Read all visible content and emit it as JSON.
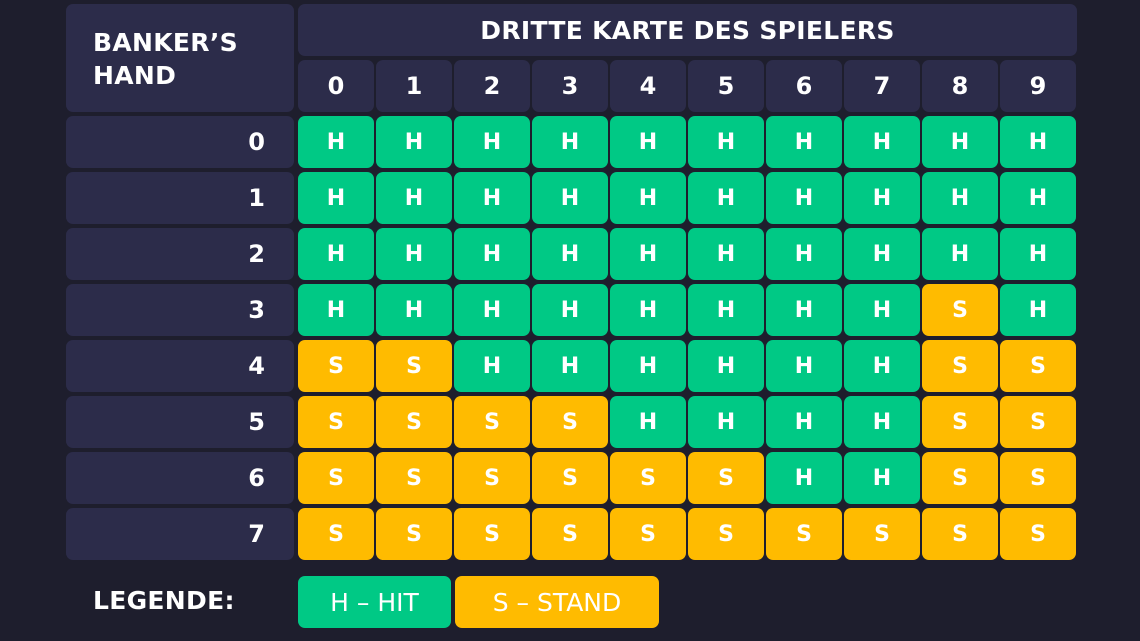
{
  "header": {
    "corner_label": "BANKER’S HAND",
    "title": "DRITTE KARTE DES SPIELERS",
    "columns": [
      "0",
      "1",
      "2",
      "3",
      "4",
      "5",
      "6",
      "7",
      "8",
      "9"
    ]
  },
  "rows": [
    {
      "label": "0",
      "cells": [
        "H",
        "H",
        "H",
        "H",
        "H",
        "H",
        "H",
        "H",
        "H",
        "H"
      ]
    },
    {
      "label": "1",
      "cells": [
        "H",
        "H",
        "H",
        "H",
        "H",
        "H",
        "H",
        "H",
        "H",
        "H"
      ]
    },
    {
      "label": "2",
      "cells": [
        "H",
        "H",
        "H",
        "H",
        "H",
        "H",
        "H",
        "H",
        "H",
        "H"
      ]
    },
    {
      "label": "3",
      "cells": [
        "H",
        "H",
        "H",
        "H",
        "H",
        "H",
        "H",
        "H",
        "S",
        "H"
      ]
    },
    {
      "label": "4",
      "cells": [
        "S",
        "S",
        "H",
        "H",
        "H",
        "H",
        "H",
        "H",
        "S",
        "S"
      ]
    },
    {
      "label": "5",
      "cells": [
        "S",
        "S",
        "S",
        "S",
        "H",
        "H",
        "H",
        "H",
        "S",
        "S"
      ]
    },
    {
      "label": "6",
      "cells": [
        "S",
        "S",
        "S",
        "S",
        "S",
        "S",
        "H",
        "H",
        "S",
        "S"
      ]
    },
    {
      "label": "7",
      "cells": [
        "S",
        "S",
        "S",
        "S",
        "S",
        "S",
        "S",
        "S",
        "S",
        "S"
      ]
    }
  ],
  "legend": {
    "label": "LEGENDE:",
    "hit": "H – HIT",
    "stand": "S – STAND"
  },
  "colors": {
    "background": "#1e1e2d",
    "header": "#2c2c4a",
    "hit": "#00c985",
    "stand": "#ffbb00"
  }
}
